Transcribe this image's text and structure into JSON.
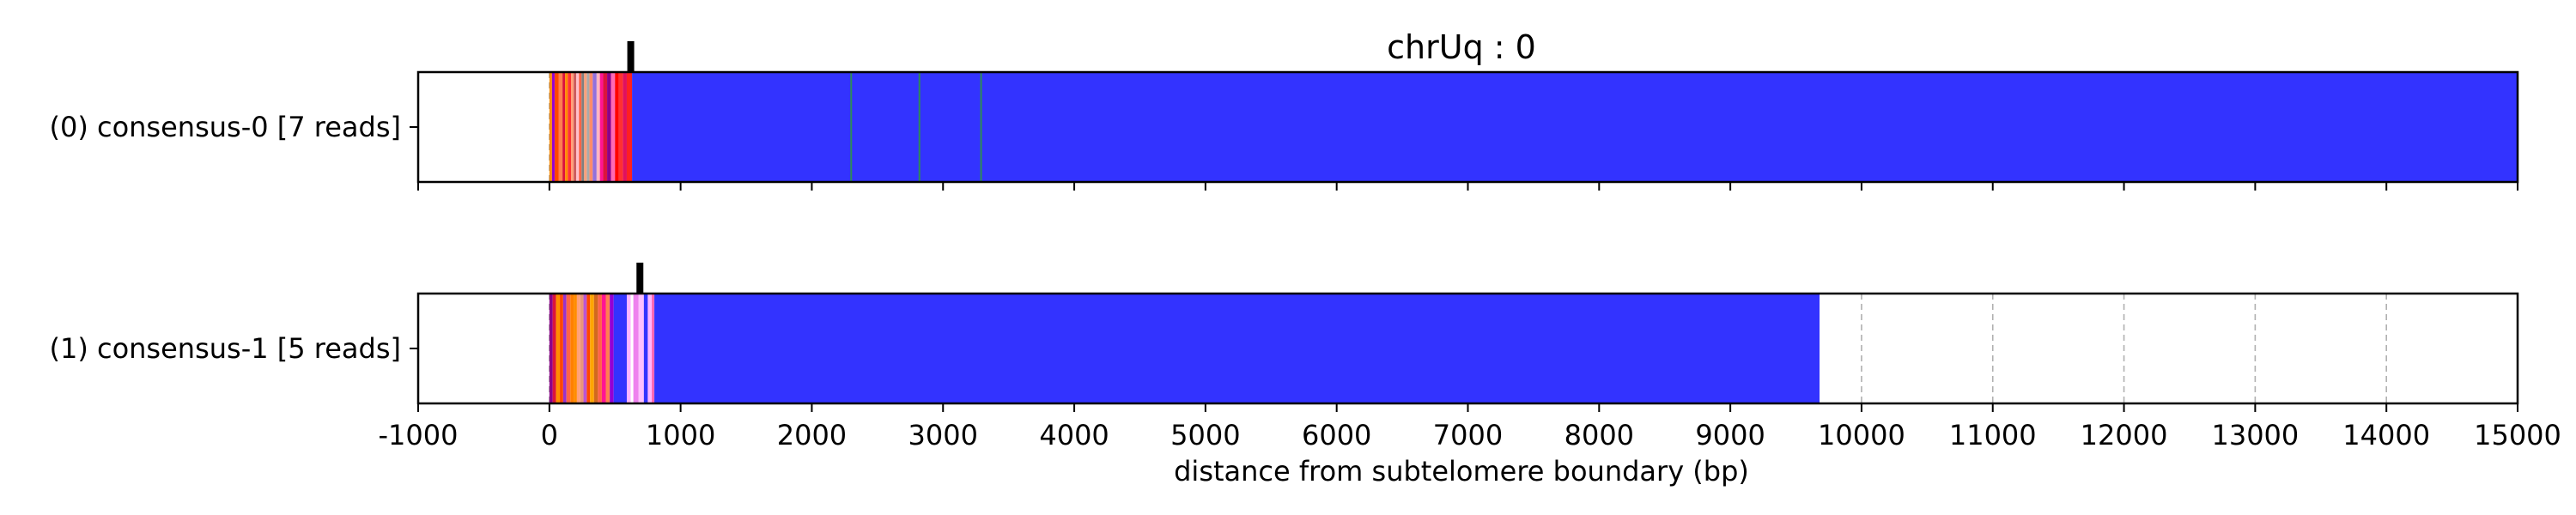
{
  "chart_data": {
    "type": "bar",
    "title": "chrUq : 0",
    "xlabel": "distance from subtelomere boundary (bp)",
    "ylabel": "",
    "xlim": [
      -1000,
      15000
    ],
    "x_ticks": [
      -1000,
      0,
      1000,
      2000,
      3000,
      4000,
      5000,
      6000,
      7000,
      8000,
      9000,
      10000,
      11000,
      12000,
      13000,
      14000,
      15000
    ],
    "x_tick_labels": [
      "-1000",
      "0",
      "1000",
      "2000",
      "3000",
      "4000",
      "5000",
      "6000",
      "7000",
      "8000",
      "9000",
      "10000",
      "11000",
      "12000",
      "13000",
      "14000",
      "15000"
    ],
    "grid": "vertical dashed",
    "legend": "none",
    "colors": {
      "telomere": "#3333ff",
      "frame": "#000000",
      "grid": "#b0b0b0",
      "marker": "#000000"
    },
    "series": [
      {
        "label": "(0) consensus-0 [7 reads]",
        "marker_position": 620,
        "segments": [
          {
            "start": 0,
            "end": 20,
            "color": "#ff8c00"
          },
          {
            "start": 20,
            "end": 40,
            "color": "#9400d3"
          },
          {
            "start": 40,
            "end": 70,
            "color": "#ff4500"
          },
          {
            "start": 70,
            "end": 100,
            "color": "#ff7f50"
          },
          {
            "start": 100,
            "end": 120,
            "color": "#dc143c"
          },
          {
            "start": 120,
            "end": 140,
            "color": "#ff8c00"
          },
          {
            "start": 140,
            "end": 165,
            "color": "#ff3333"
          },
          {
            "start": 165,
            "end": 185,
            "color": "#ffa07a"
          },
          {
            "start": 185,
            "end": 205,
            "color": "#cd5c5c"
          },
          {
            "start": 205,
            "end": 225,
            "color": "#ffc0cb"
          },
          {
            "start": 225,
            "end": 245,
            "color": "#ff6347"
          },
          {
            "start": 245,
            "end": 265,
            "color": "#808080"
          },
          {
            "start": 265,
            "end": 285,
            "color": "#ffa07a"
          },
          {
            "start": 285,
            "end": 305,
            "color": "#a9a9a9"
          },
          {
            "start": 305,
            "end": 330,
            "color": "#ff8c69"
          },
          {
            "start": 330,
            "end": 360,
            "color": "#9370db"
          },
          {
            "start": 360,
            "end": 385,
            "color": "#ffb6c1"
          },
          {
            "start": 385,
            "end": 410,
            "color": "#ff1493"
          },
          {
            "start": 410,
            "end": 440,
            "color": "#dc143c"
          },
          {
            "start": 440,
            "end": 470,
            "color": "#8b008b"
          },
          {
            "start": 470,
            "end": 500,
            "color": "#ff69b4"
          },
          {
            "start": 500,
            "end": 530,
            "color": "#ff0000"
          },
          {
            "start": 530,
            "end": 560,
            "color": "#ff3030"
          },
          {
            "start": 560,
            "end": 590,
            "color": "#e0115f"
          },
          {
            "start": 590,
            "end": 630,
            "color": "#ff2020"
          },
          {
            "start": 630,
            "end": 15000,
            "color": "#3333ff"
          }
        ],
        "stripes": [
          {
            "pos": 2300,
            "color": "#2e8b57"
          },
          {
            "pos": 2820,
            "color": "#2e8b57"
          },
          {
            "pos": 3290,
            "color": "#2e8b57"
          }
        ]
      },
      {
        "label": "(1) consensus-1 [5 reads]",
        "marker_position": 690,
        "segments": [
          {
            "start": 0,
            "end": 25,
            "color": "#8b008b"
          },
          {
            "start": 25,
            "end": 50,
            "color": "#dc143c"
          },
          {
            "start": 50,
            "end": 80,
            "color": "#ff8c00"
          },
          {
            "start": 80,
            "end": 105,
            "color": "#ff4500"
          },
          {
            "start": 105,
            "end": 130,
            "color": "#9932cc"
          },
          {
            "start": 130,
            "end": 160,
            "color": "#ff6347"
          },
          {
            "start": 160,
            "end": 185,
            "color": "#ff7f00"
          },
          {
            "start": 185,
            "end": 210,
            "color": "#ff8c00"
          },
          {
            "start": 210,
            "end": 235,
            "color": "#ffa07a"
          },
          {
            "start": 235,
            "end": 260,
            "color": "#e9967a"
          },
          {
            "start": 260,
            "end": 285,
            "color": "#ba55d3"
          },
          {
            "start": 285,
            "end": 310,
            "color": "#ff4500"
          },
          {
            "start": 310,
            "end": 340,
            "color": "#ffa500"
          },
          {
            "start": 340,
            "end": 370,
            "color": "#d2691e"
          },
          {
            "start": 370,
            "end": 400,
            "color": "#ff6347"
          },
          {
            "start": 400,
            "end": 430,
            "color": "#ff1493"
          },
          {
            "start": 430,
            "end": 460,
            "color": "#ff7f50"
          },
          {
            "start": 460,
            "end": 490,
            "color": "#9400d3"
          },
          {
            "start": 490,
            "end": 590,
            "color": "#3333ff"
          },
          {
            "start": 590,
            "end": 620,
            "color": "#ffb6ff"
          },
          {
            "start": 620,
            "end": 640,
            "color": "#ffffff"
          },
          {
            "start": 640,
            "end": 680,
            "color": "#ee82ee"
          },
          {
            "start": 680,
            "end": 720,
            "color": "#ffc0ff"
          },
          {
            "start": 720,
            "end": 750,
            "color": "#3333ff"
          },
          {
            "start": 750,
            "end": 780,
            "color": "#ffb6ff"
          },
          {
            "start": 780,
            "end": 800,
            "color": "#ff69b4"
          },
          {
            "start": 800,
            "end": 9680,
            "color": "#3333ff"
          }
        ],
        "stripes": []
      }
    ]
  }
}
